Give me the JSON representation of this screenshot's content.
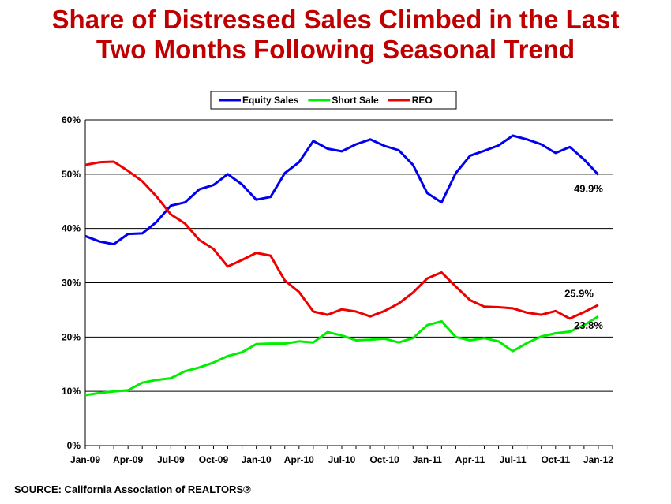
{
  "header": {
    "title_line1": "Share of Distressed Sales Climbed in the Last",
    "title_line2": "Two Months Following Seasonal Trend"
  },
  "footer": {
    "source": "SOURCE: California Association of REALTORS®"
  },
  "colors": {
    "title": "#c00000",
    "equity": "#0000ee",
    "short_sale": "#00ee00",
    "reo": "#ee0000"
  },
  "chart_data": {
    "type": "line",
    "x": [
      "Jan-09",
      "Feb-09",
      "Mar-09",
      "Apr-09",
      "May-09",
      "Jun-09",
      "Jul-09",
      "Aug-09",
      "Sep-09",
      "Oct-09",
      "Nov-09",
      "Dec-09",
      "Jan-10",
      "Feb-10",
      "Mar-10",
      "Apr-10",
      "May-10",
      "Jun-10",
      "Jul-10",
      "Aug-10",
      "Sep-10",
      "Oct-10",
      "Nov-10",
      "Dec-10",
      "Jan-11",
      "Feb-11",
      "Mar-11",
      "Apr-11",
      "May-11",
      "Jun-11",
      "Jul-11",
      "Aug-11",
      "Sep-11",
      "Oct-11",
      "Nov-11",
      "Dec-11",
      "Jan-12",
      "Feb-12"
    ],
    "tick_labels": [
      "Jan-09",
      "Apr-09",
      "Jul-09",
      "Oct-09",
      "Jan-10",
      "Apr-10",
      "Jul-10",
      "Oct-10",
      "Jan-11",
      "Apr-11",
      "Jul-11",
      "Oct-11",
      "Jan-12"
    ],
    "y_tick_labels": [
      "0%",
      "10%",
      "20%",
      "30%",
      "40%",
      "50%",
      "60%"
    ],
    "ylim": [
      0,
      60
    ],
    "grid": true,
    "legend_position": "top-center",
    "series": [
      {
        "name": "Equity Sales",
        "color": "#0000ee",
        "values": [
          38.6,
          37.6,
          37.1,
          39.0,
          39.1,
          41.2,
          44.2,
          44.8,
          47.2,
          48.0,
          50.0,
          48.1,
          45.3,
          45.8,
          50.2,
          52.2,
          56.1,
          54.7,
          54.2,
          55.5,
          56.4,
          55.2,
          54.4,
          51.7,
          46.5,
          44.8,
          50.2,
          53.4,
          54.3,
          55.3,
          57.1,
          56.4,
          55.5,
          53.9,
          55.0,
          52.7,
          49.9,
          null
        ]
      },
      {
        "name": "Short Sale",
        "color": "#00ee00",
        "values": [
          9.3,
          9.7,
          10.0,
          10.2,
          11.6,
          12.1,
          12.4,
          13.7,
          14.4,
          15.3,
          16.5,
          17.2,
          18.7,
          18.8,
          18.8,
          19.2,
          19.0,
          20.9,
          20.3,
          19.4,
          19.5,
          19.7,
          19.0,
          19.8,
          22.2,
          22.9,
          20.0,
          19.4,
          19.8,
          19.2,
          17.4,
          18.9,
          20.1,
          20.7,
          21.0,
          22.2,
          23.8,
          null
        ]
      },
      {
        "name": "REO",
        "color": "#ee0000",
        "values": [
          51.7,
          52.2,
          52.3,
          50.6,
          48.7,
          45.9,
          42.6,
          40.9,
          37.9,
          36.2,
          33.0,
          34.2,
          35.5,
          35.0,
          30.4,
          28.3,
          24.7,
          24.1,
          25.1,
          24.7,
          23.8,
          24.8,
          26.2,
          28.2,
          30.8,
          31.9,
          29.3,
          26.8,
          25.6,
          25.5,
          25.3,
          24.5,
          24.1,
          24.8,
          23.4,
          24.6,
          25.9,
          null
        ]
      }
    ],
    "annotations": [
      {
        "text": "49.9%",
        "series": "Equity Sales"
      },
      {
        "text": "25.9%",
        "series": "REO"
      },
      {
        "text": "23.8%",
        "series": "Short Sale"
      }
    ]
  }
}
